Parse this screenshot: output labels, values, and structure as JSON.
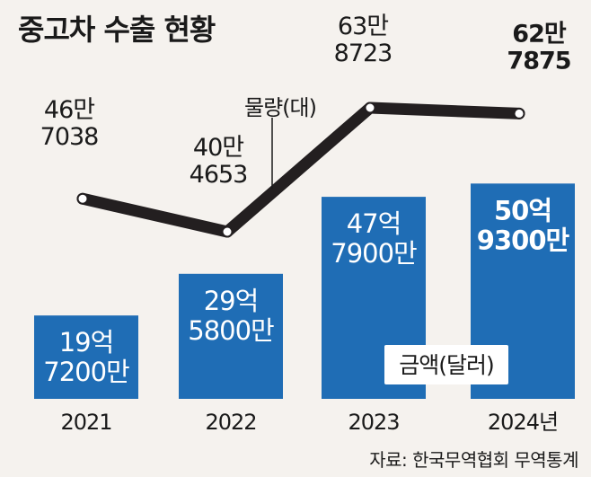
{
  "title": "중고차 수출 현황",
  "source": "자료: 한국무역협회 무역통계",
  "colors": {
    "bar": "#1f6db5",
    "line": "#231f20",
    "background": "#f5f2ee"
  },
  "chart_data": {
    "type": "bar+line",
    "categories": [
      "2021",
      "2022",
      "2023",
      "2024년"
    ],
    "series": [
      {
        "name": "금액(달러)",
        "type": "bar",
        "unit": "달러",
        "values": [
          1972000000,
          2958000000,
          4779000000,
          5093000000
        ],
        "labels": [
          [
            "19억",
            "7200만"
          ],
          [
            "29억",
            "5800만"
          ],
          [
            "47억",
            "7900만"
          ],
          [
            "50억",
            "9300만"
          ]
        ]
      },
      {
        "name": "물량(대)",
        "type": "line",
        "unit": "대",
        "values": [
          467038,
          404653,
          638723,
          627875
        ],
        "labels": [
          [
            "46만",
            "7038"
          ],
          [
            "40만",
            "4653"
          ],
          [
            "63만",
            "8723"
          ],
          [
            "62만",
            "7875"
          ]
        ]
      }
    ]
  }
}
